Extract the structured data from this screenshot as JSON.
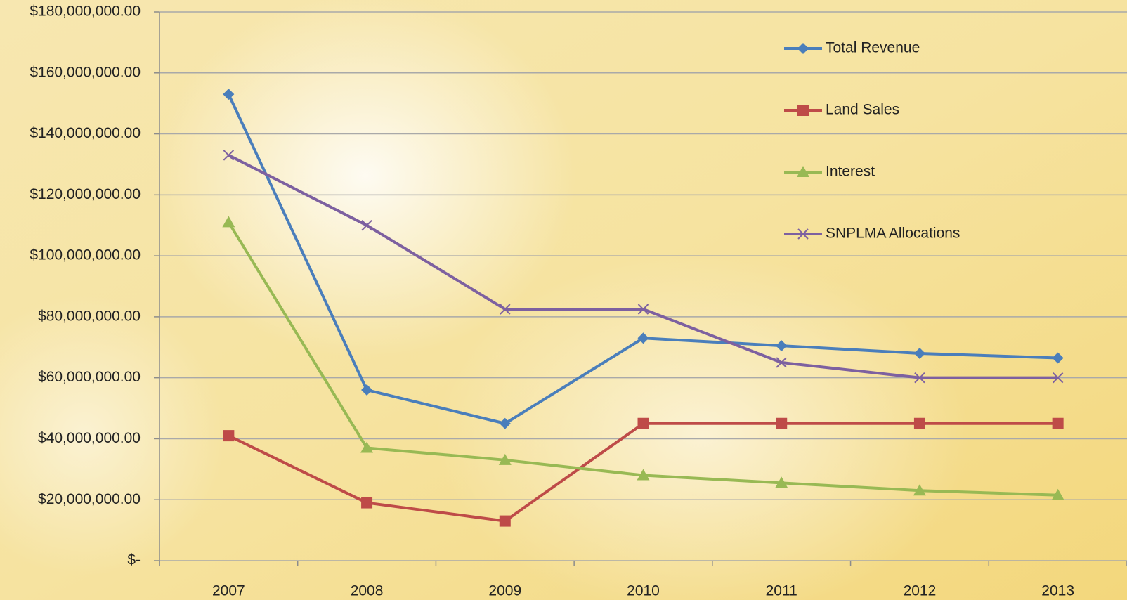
{
  "chart_data": {
    "type": "line",
    "categories": [
      "2007",
      "2008",
      "2009",
      "2010",
      "2011",
      "2012",
      "2013"
    ],
    "series": [
      {
        "name": "Total Revenue",
        "color": "#4a7ebb",
        "marker": "diamond",
        "values": [
          153000000,
          56000000,
          45000000,
          73000000,
          70500000,
          68000000,
          66500000
        ]
      },
      {
        "name": "Land Sales",
        "color": "#be4b48",
        "marker": "square",
        "values": [
          41000000,
          19000000,
          13000000,
          45000000,
          45000000,
          45000000,
          45000000
        ]
      },
      {
        "name": "Interest",
        "color": "#98b954",
        "marker": "triangle",
        "values": [
          111000000,
          37000000,
          33000000,
          28000000,
          25500000,
          23000000,
          21500000
        ]
      },
      {
        "name": "SNPLMA Allocations",
        "color": "#7d60a0",
        "marker": "x",
        "values": [
          133000000,
          110000000,
          82500000,
          82500000,
          65000000,
          60000000,
          60000000
        ]
      }
    ],
    "ylim": [
      0,
      180000000
    ],
    "yticks": [
      {
        "value": 0,
        "label": "$-"
      },
      {
        "value": 20000000,
        "label": "$20,000,000.00"
      },
      {
        "value": 40000000,
        "label": "$40,000,000.00"
      },
      {
        "value": 60000000,
        "label": "$60,000,000.00"
      },
      {
        "value": 80000000,
        "label": "$80,000,000.00"
      },
      {
        "value": 100000000,
        "label": "$100,000,000.00"
      },
      {
        "value": 120000000,
        "label": "$120,000,000.00"
      },
      {
        "value": 140000000,
        "label": "$140,000,000.00"
      },
      {
        "value": 160000000,
        "label": "$160,000,000.00"
      },
      {
        "value": 180000000,
        "label": "$180,000,000.00"
      }
    ],
    "grid": true,
    "legend": "upper right"
  }
}
